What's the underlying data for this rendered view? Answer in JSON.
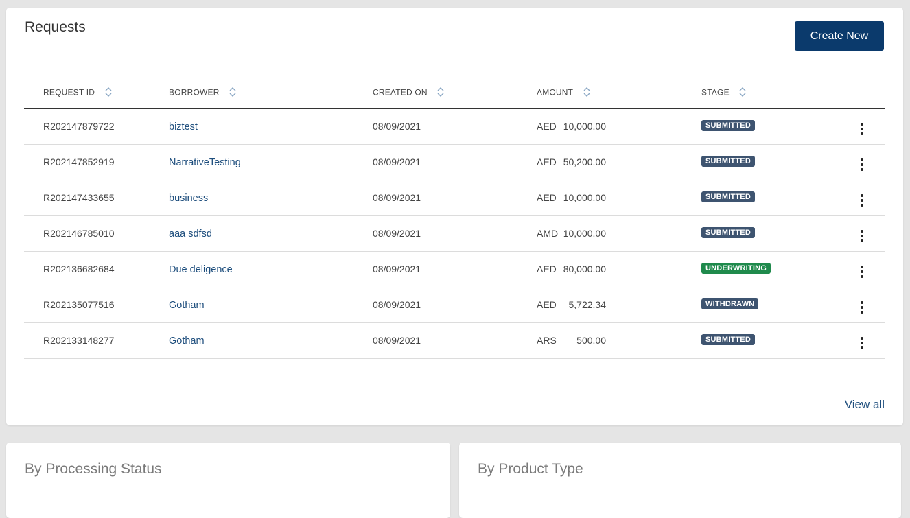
{
  "requests": {
    "title": "Requests",
    "create_label": "Create New",
    "view_all_label": "View all",
    "columns": {
      "request_id": "REQUEST ID",
      "borrower": "BORROWER",
      "created_on": "CREATED ON",
      "amount": "AMOUNT",
      "stage": "STAGE"
    },
    "rows": [
      {
        "id": "R202147879722",
        "borrower": "biztest",
        "created": "08/09/2021",
        "currency": "AED",
        "amount": "10,000.00",
        "stage": "SUBMITTED"
      },
      {
        "id": "R202147852919",
        "borrower": "NarrativeTesting",
        "created": "08/09/2021",
        "currency": "AED",
        "amount": "50,200.00",
        "stage": "SUBMITTED"
      },
      {
        "id": "R202147433655",
        "borrower": "business",
        "created": "08/09/2021",
        "currency": "AED",
        "amount": "10,000.00",
        "stage": "SUBMITTED"
      },
      {
        "id": "R202146785010",
        "borrower": "aaa sdfsd",
        "created": "08/09/2021",
        "currency": "AMD",
        "amount": "10,000.00",
        "stage": "SUBMITTED"
      },
      {
        "id": "R202136682684",
        "borrower": "Due deligence",
        "created": "08/09/2021",
        "currency": "AED",
        "amount": "80,000.00",
        "stage": "UNDERWRITING"
      },
      {
        "id": "R202135077516",
        "borrower": "Gotham",
        "created": "08/09/2021",
        "currency": "AED",
        "amount": "5,722.34",
        "stage": "WITHDRAWN"
      },
      {
        "id": "R202133148277",
        "borrower": "Gotham",
        "created": "08/09/2021",
        "currency": "ARS",
        "amount": "500.00",
        "stage": "SUBMITTED"
      }
    ]
  },
  "panels": {
    "processing_status_title": "By Processing Status",
    "product_type_title": "By Product Type"
  },
  "colors": {
    "primary": "#0b3a6c",
    "link": "#1e4e7d",
    "badge_default": "#3e5470",
    "badge_underwriting": "#1f8a4c"
  },
  "icons": {
    "sort": "sort-icon",
    "row_menu": "kebab-menu-icon"
  }
}
